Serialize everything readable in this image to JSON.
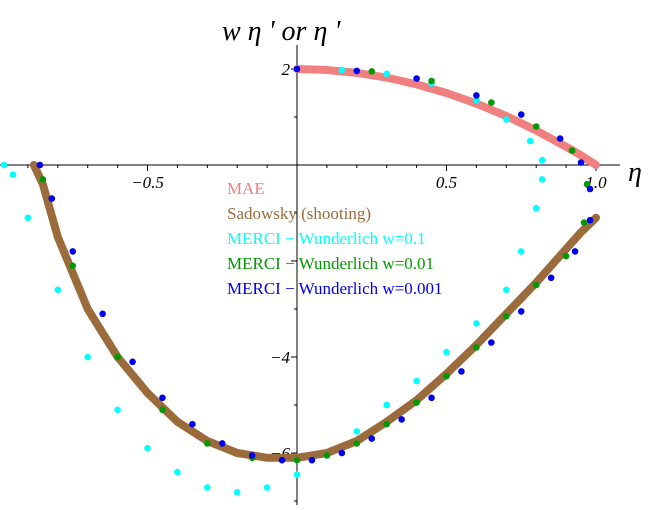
{
  "chart_data": {
    "type": "scatter",
    "ylabel": "w η ' or η '",
    "xlabel": "η",
    "xlim": [
      -1.0,
      1.1
    ],
    "ylim": [
      -7.2,
      2.4
    ],
    "x_ticks": [
      -0.5,
      0.5,
      1.0
    ],
    "x_tick_labels": [
      "−0.5",
      "0.5",
      "1.0"
    ],
    "y_ticks": [
      2,
      -4,
      -6
    ],
    "y_tick_labels": [
      "2",
      "−4",
      "−6"
    ],
    "legend_position": "center-left inside",
    "series": [
      {
        "name": "MAE",
        "color": "#f08080",
        "style": "thick-line",
        "x": [
          0.0,
          0.1,
          0.2,
          0.3,
          0.4,
          0.5,
          0.6,
          0.7,
          0.8,
          0.9,
          0.95,
          1.0
        ],
        "y": [
          2.0,
          1.98,
          1.92,
          1.82,
          1.68,
          1.5,
          1.28,
          1.02,
          0.72,
          0.38,
          0.2,
          0.0
        ]
      },
      {
        "name": "Sadowsky (shooting)",
        "color": "#9c6b3c",
        "style": "thick-line",
        "x": [
          1.0,
          0.95,
          0.9,
          0.85,
          0.8,
          0.7,
          0.6,
          0.5,
          0.4,
          0.3,
          0.2,
          0.1,
          0.0,
          -0.1,
          -0.2,
          -0.3,
          -0.4,
          -0.5,
          -0.6,
          -0.7,
          -0.8,
          -0.85,
          -0.88
        ],
        "y": [
          -1.1,
          -1.4,
          -1.75,
          -2.1,
          -2.45,
          -3.1,
          -3.75,
          -4.35,
          -4.9,
          -5.35,
          -5.75,
          -6.0,
          -6.1,
          -6.1,
          -6.0,
          -5.75,
          -5.35,
          -4.75,
          -4.0,
          -3.0,
          -1.5,
          -0.4,
          0.0
        ]
      },
      {
        "name": "MERCI − Wunderlich w=0.1",
        "color": "#00ffff",
        "style": "dots",
        "x": [
          0.15,
          0.3,
          0.45,
          0.6,
          0.7,
          0.78,
          0.82,
          0.82,
          0.8,
          0.75,
          0.7,
          0.6,
          0.5,
          0.4,
          0.3,
          0.2,
          0.1,
          0.0,
          -0.1,
          -0.2,
          -0.3,
          -0.4,
          -0.5,
          -0.6,
          -0.7,
          -0.8,
          -0.9,
          -0.95,
          -0.98
        ],
        "y": [
          1.98,
          1.9,
          1.7,
          1.35,
          0.95,
          0.5,
          0.1,
          -0.3,
          -0.9,
          -1.8,
          -2.6,
          -3.3,
          -3.9,
          -4.5,
          -5.0,
          -5.55,
          -6.05,
          -6.45,
          -6.72,
          -6.82,
          -6.72,
          -6.4,
          -5.9,
          -5.1,
          -4.0,
          -2.6,
          -1.1,
          -0.2,
          0.0
        ]
      },
      {
        "name": "MERCI − Wunderlich w=0.01",
        "color": "#009900",
        "style": "dots",
        "x": [
          0.25,
          0.45,
          0.65,
          0.8,
          0.92,
          0.97,
          0.96,
          0.9,
          0.8,
          0.7,
          0.6,
          0.5,
          0.4,
          0.3,
          0.2,
          0.1,
          0.0,
          -0.15,
          -0.3,
          -0.45,
          -0.6,
          -0.75,
          -0.85
        ],
        "y": [
          1.95,
          1.75,
          1.3,
          0.8,
          0.3,
          -0.4,
          -1.2,
          -1.9,
          -2.5,
          -3.15,
          -3.8,
          -4.4,
          -4.95,
          -5.4,
          -5.8,
          -6.05,
          -6.15,
          -6.1,
          -5.8,
          -5.1,
          -4.0,
          -2.1,
          -0.3
        ]
      },
      {
        "name": "MERCI − Wunderlich w=0.001",
        "color": "#0000ee",
        "style": "dots",
        "x": [
          0.0,
          0.2,
          0.4,
          0.6,
          0.75,
          0.88,
          0.95,
          0.98,
          0.98,
          0.93,
          0.85,
          0.75,
          0.65,
          0.55,
          0.45,
          0.35,
          0.25,
          0.15,
          0.05,
          -0.05,
          -0.15,
          -0.25,
          -0.35,
          -0.45,
          -0.55,
          -0.65,
          -0.75,
          -0.82,
          -0.86
        ],
        "y": [
          2.0,
          1.96,
          1.8,
          1.45,
          1.05,
          0.55,
          0.05,
          -0.5,
          -1.15,
          -1.8,
          -2.35,
          -3.05,
          -3.7,
          -4.3,
          -4.85,
          -5.3,
          -5.7,
          -6.0,
          -6.15,
          -6.15,
          -6.05,
          -5.8,
          -5.4,
          -4.85,
          -4.1,
          -3.1,
          -1.8,
          -0.7,
          0.0
        ]
      }
    ]
  }
}
